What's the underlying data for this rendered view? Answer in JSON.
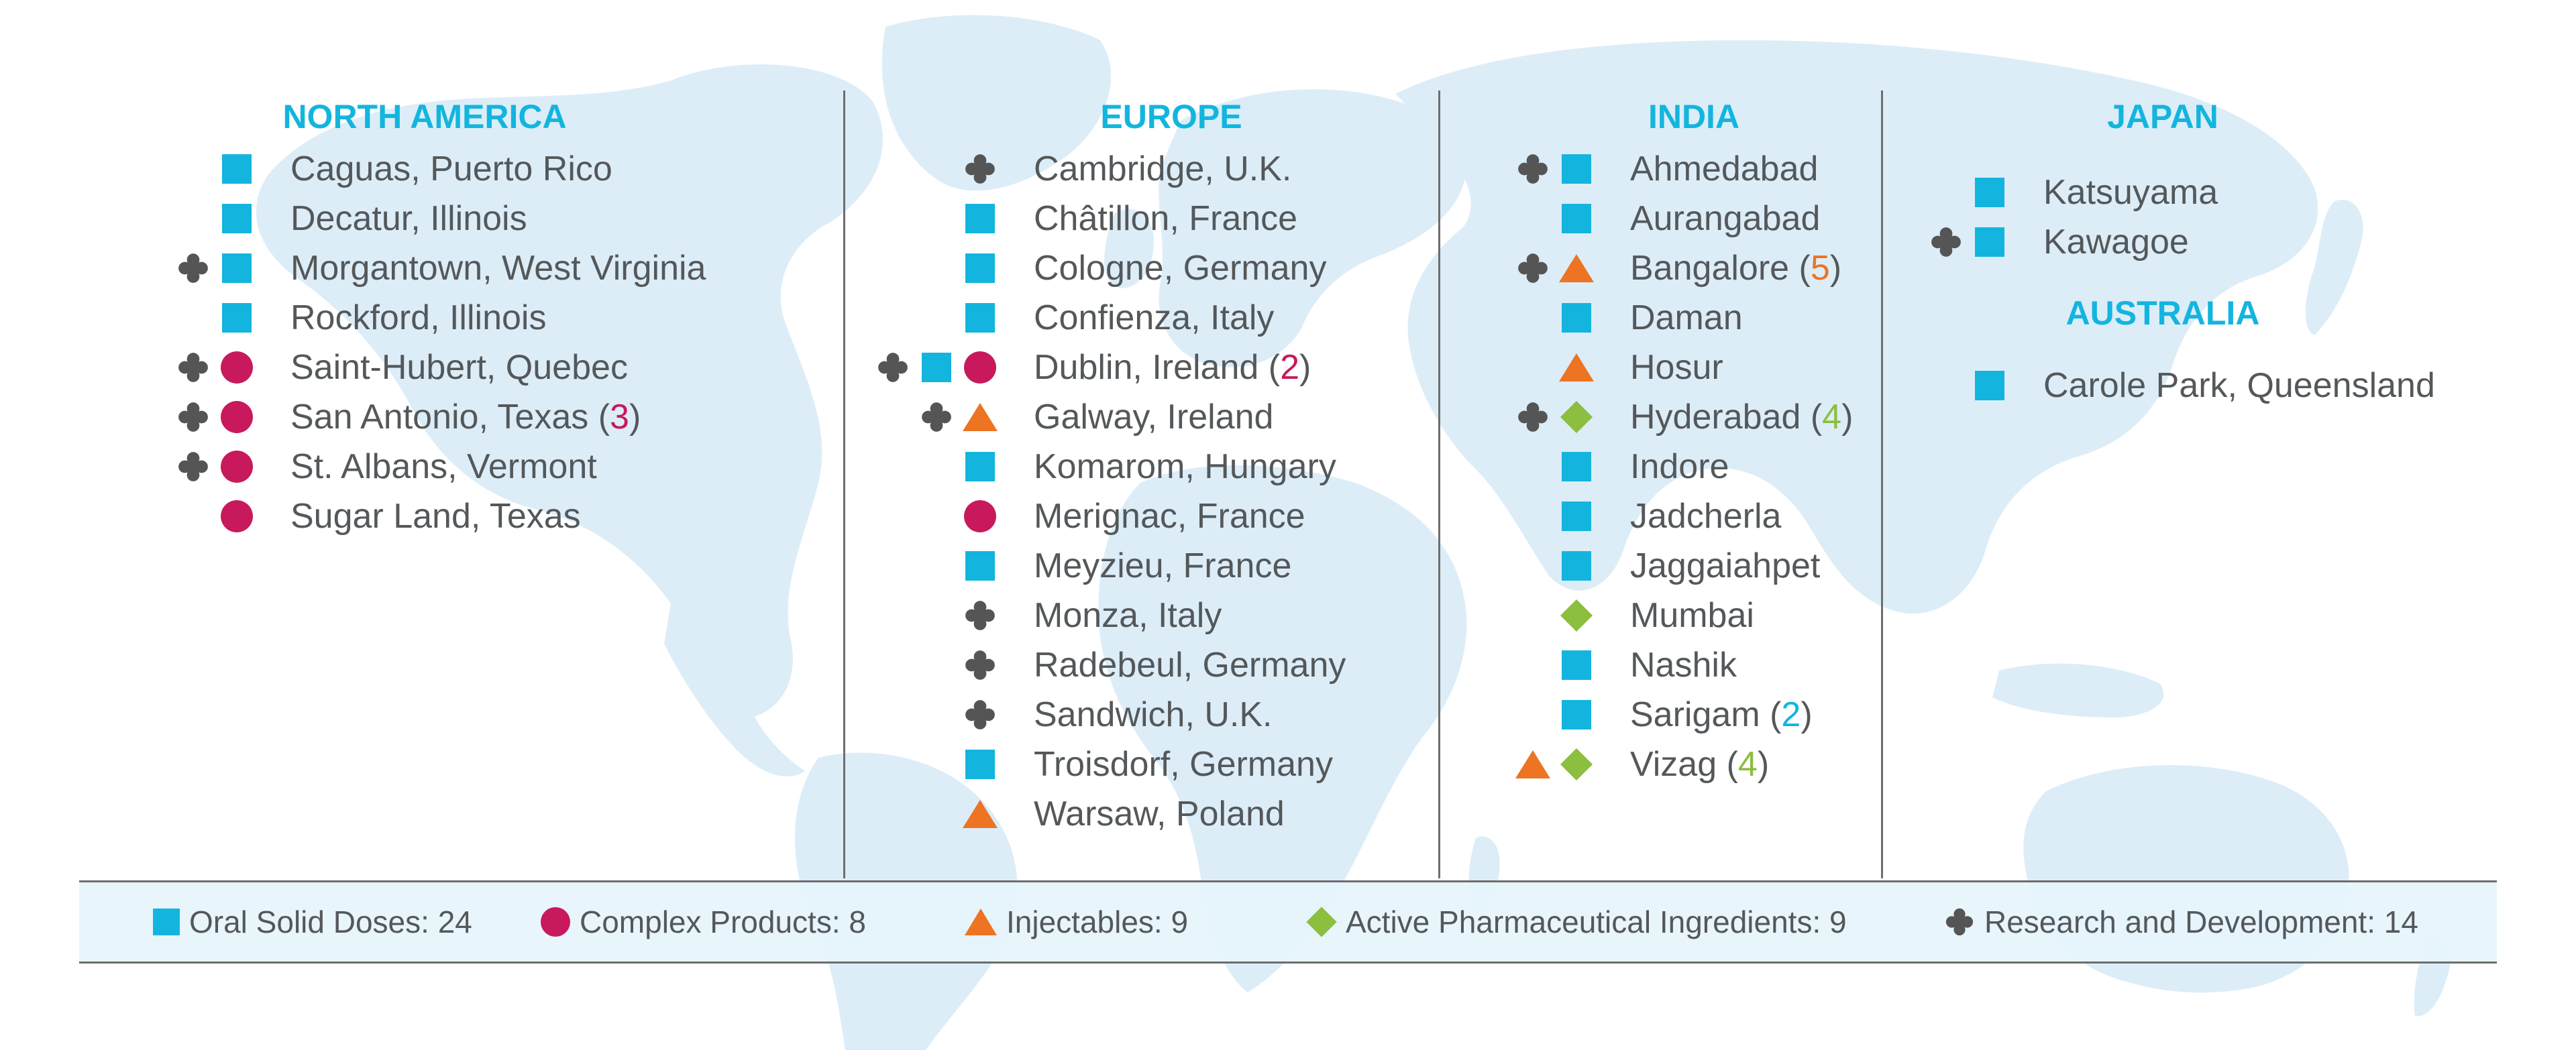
{
  "colors": {
    "oral_solid": "#13b5de",
    "complex": "#c8195c",
    "injectables": "#ec7423",
    "api": "#8cbe3f",
    "rnd": "#555555",
    "title": "#13b5de",
    "map": "#dbeef8"
  },
  "regions": {
    "north_america": {
      "title": "NORTH AMERICA",
      "sites": [
        {
          "name": "Caguas, Puerto Rico",
          "markers": [
            "square"
          ]
        },
        {
          "name": "Decatur, Illinois",
          "markers": [
            "square"
          ]
        },
        {
          "name": "Morgantown, West Virginia",
          "markers": [
            "rnd",
            "square"
          ]
        },
        {
          "name": "Rockford, Illinois",
          "markers": [
            "square"
          ]
        },
        {
          "name": "Saint-Hubert, Quebec",
          "markers": [
            "rnd",
            "circle"
          ]
        },
        {
          "name": "San Antonio, Texas",
          "markers": [
            "rnd",
            "circle"
          ],
          "count": "3"
        },
        {
          "name": "St. Albans, Vermont",
          "markers": [
            "rnd",
            "circle"
          ]
        },
        {
          "name": "Sugar Land, Texas",
          "markers": [
            "circle"
          ]
        }
      ]
    },
    "europe": {
      "title": "EUROPE",
      "sites": [
        {
          "name": "Cambridge, U.K.",
          "markers": [
            "rnd"
          ]
        },
        {
          "name": "Châtillon, France",
          "markers": [
            "square"
          ]
        },
        {
          "name": "Cologne, Germany",
          "markers": [
            "square"
          ]
        },
        {
          "name": "Confienza, Italy",
          "markers": [
            "square"
          ]
        },
        {
          "name": "Dublin, Ireland",
          "markers": [
            "rnd",
            "square",
            "circle"
          ],
          "count": "2"
        },
        {
          "name": "Galway, Ireland",
          "markers": [
            "rnd",
            "triangle"
          ]
        },
        {
          "name": "Komarom, Hungary",
          "markers": [
            "square"
          ]
        },
        {
          "name": "Merignac, France",
          "markers": [
            "circle"
          ]
        },
        {
          "name": "Meyzieu, France",
          "markers": [
            "square"
          ]
        },
        {
          "name": "Monza, Italy",
          "markers": [
            "rnd"
          ]
        },
        {
          "name": "Radebeul, Germany",
          "markers": [
            "rnd"
          ]
        },
        {
          "name": "Sandwich, U.K.",
          "markers": [
            "rnd"
          ]
        },
        {
          "name": "Troisdorf, Germany",
          "markers": [
            "square"
          ]
        },
        {
          "name": "Warsaw, Poland",
          "markers": [
            "triangle"
          ]
        }
      ]
    },
    "india": {
      "title": "INDIA",
      "sites": [
        {
          "name": "Ahmedabad",
          "markers": [
            "rnd",
            "square"
          ]
        },
        {
          "name": "Aurangabad",
          "markers": [
            "square"
          ]
        },
        {
          "name": "Bangalore",
          "markers": [
            "rnd",
            "triangle"
          ],
          "count": "5"
        },
        {
          "name": "Daman",
          "markers": [
            "square"
          ]
        },
        {
          "name": "Hosur",
          "markers": [
            "triangle"
          ]
        },
        {
          "name": "Hyderabad",
          "markers": [
            "rnd",
            "diamond"
          ],
          "count": "4"
        },
        {
          "name": "Indore",
          "markers": [
            "square"
          ]
        },
        {
          "name": "Jadcherla",
          "markers": [
            "square"
          ]
        },
        {
          "name": "Jaggaiahpet",
          "markers": [
            "square"
          ]
        },
        {
          "name": "Mumbai",
          "markers": [
            "diamond"
          ]
        },
        {
          "name": "Nashik",
          "markers": [
            "square"
          ]
        },
        {
          "name": "Sarigam",
          "markers": [
            "square"
          ],
          "count": "2"
        },
        {
          "name": "Vizag",
          "markers": [
            "triangle",
            "diamond"
          ],
          "count": "4"
        }
      ]
    },
    "japan": {
      "title": "JAPAN",
      "sites": [
        {
          "name": "Katsuyama",
          "markers": [
            "square"
          ]
        },
        {
          "name": "Kawagoe",
          "markers": [
            "rnd",
            "square"
          ]
        }
      ]
    },
    "australia": {
      "title": "AUSTRALIA",
      "sites": [
        {
          "name": "Carole Park, Queensland",
          "markers": [
            "square"
          ]
        }
      ]
    }
  },
  "legend": [
    {
      "marker": "square",
      "label": "Oral Solid Doses: 24"
    },
    {
      "marker": "circle",
      "label": "Complex Products: 8"
    },
    {
      "marker": "triangle",
      "label": "Injectables: 9"
    },
    {
      "marker": "diamond",
      "label": "Active Pharmaceutical Ingredients: 9"
    },
    {
      "marker": "rnd",
      "label": "Research and Development: 14"
    }
  ]
}
